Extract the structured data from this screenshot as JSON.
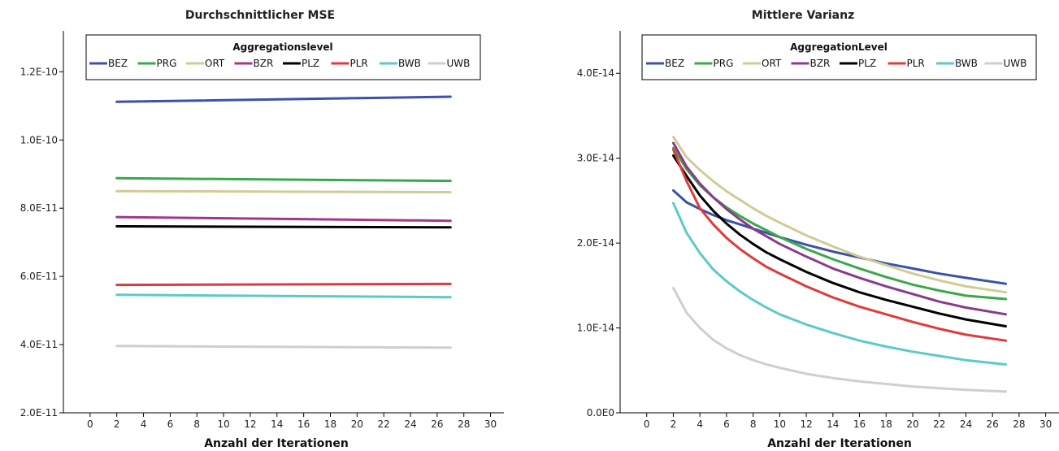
{
  "chart_data": [
    {
      "type": "line",
      "title": "Durchschnittlicher MSE",
      "xlabel": "Anzahl der Iterationen",
      "ylabel": "",
      "legend_title": "Aggregationslevel",
      "legend_position": "top-center",
      "xlim": [
        -2,
        31
      ],
      "ylim": [
        2e-11,
        1.32e-10
      ],
      "xticks": [
        "0",
        "2",
        "4",
        "6",
        "8",
        "10",
        "12",
        "14",
        "16",
        "18",
        "20",
        "22",
        "24",
        "26",
        "28",
        "30"
      ],
      "yticks": [
        "2.0E-11",
        "4.0E-11",
        "6.0E-11",
        "8.0E-11",
        "1.0E-10",
        "1.2E-10"
      ],
      "ytick_values": [
        2e-11,
        4e-11,
        6e-11,
        8e-11,
        1e-10,
        1.2e-10
      ],
      "grid": false,
      "x": [
        2,
        27
      ],
      "series": [
        {
          "name": "BEZ",
          "color": "#3a52a8",
          "values": [
            1.112e-10,
            1.127e-10
          ]
        },
        {
          "name": "PRG",
          "color": "#3aa84a",
          "values": [
            8.88e-11,
            8.8e-11
          ]
        },
        {
          "name": "ORT",
          "color": "#d0cc94",
          "values": [
            8.5e-11,
            8.47e-11
          ]
        },
        {
          "name": "BZR",
          "color": "#a0388e",
          "values": [
            7.74e-11,
            7.63e-11
          ]
        },
        {
          "name": "PLZ",
          "color": "#000000",
          "values": [
            7.47e-11,
            7.44e-11
          ]
        },
        {
          "name": "PLR",
          "color": "#e03a3a",
          "values": [
            5.75e-11,
            5.78e-11
          ]
        },
        {
          "name": "BWB",
          "color": "#5ccac6",
          "values": [
            5.46e-11,
            5.39e-11
          ]
        },
        {
          "name": "UWB",
          "color": "#cfcfcf",
          "values": [
            3.96e-11,
            3.91e-11
          ]
        }
      ]
    },
    {
      "type": "line",
      "title": "Mittlere Varianz",
      "xlabel": "Anzahl der Iterationen",
      "ylabel": "",
      "legend_title": "AggregationLevel",
      "legend_position": "top-center",
      "xlim": [
        -2,
        31
      ],
      "ylim": [
        0,
        4.5e-14
      ],
      "xticks": [
        "0",
        "2",
        "4",
        "6",
        "8",
        "10",
        "12",
        "14",
        "16",
        "18",
        "20",
        "22",
        "24",
        "26",
        "28",
        "30"
      ],
      "yticks": [
        "0.0E0",
        "1.0E-14",
        "2.0E-14",
        "3.0E-14",
        "4.0E-14"
      ],
      "ytick_values": [
        0,
        1e-14,
        2e-14,
        3e-14,
        4e-14
      ],
      "grid": false,
      "x": [
        2,
        3,
        4,
        5,
        6,
        7,
        8,
        9,
        10,
        12,
        14,
        16,
        18,
        20,
        22,
        24,
        27
      ],
      "series": [
        {
          "name": "BEZ",
          "color": "#3a52a8",
          "values": [
            2.62e-14,
            2.48e-14,
            2.4e-14,
            2.33e-14,
            2.27e-14,
            2.22e-14,
            2.17e-14,
            2.12e-14,
            2.07e-14,
            1.98e-14,
            1.9e-14,
            1.83e-14,
            1.76e-14,
            1.7e-14,
            1.64e-14,
            1.59e-14,
            1.52e-14
          ]
        },
        {
          "name": "PRG",
          "color": "#3aa84a",
          "values": [
            3.12e-14,
            2.87e-14,
            2.68e-14,
            2.54e-14,
            2.42e-14,
            2.32e-14,
            2.23e-14,
            2.15e-14,
            2.07e-14,
            1.93e-14,
            1.81e-14,
            1.7e-14,
            1.6e-14,
            1.51e-14,
            1.44e-14,
            1.38e-14,
            1.34e-14
          ]
        },
        {
          "name": "ORT",
          "color": "#d0cc94",
          "values": [
            3.25e-14,
            3.01e-14,
            2.86e-14,
            2.73e-14,
            2.61e-14,
            2.51e-14,
            2.41e-14,
            2.32e-14,
            2.24e-14,
            2.09e-14,
            1.96e-14,
            1.84e-14,
            1.74e-14,
            1.64e-14,
            1.56e-14,
            1.49e-14,
            1.42e-14
          ]
        },
        {
          "name": "BZR",
          "color": "#8b3a8e",
          "values": [
            3.18e-14,
            2.9e-14,
            2.7e-14,
            2.54e-14,
            2.4e-14,
            2.28e-14,
            2.17e-14,
            2.08e-14,
            1.99e-14,
            1.84e-14,
            1.7e-14,
            1.59e-14,
            1.49e-14,
            1.4e-14,
            1.31e-14,
            1.24e-14,
            1.16e-14
          ]
        },
        {
          "name": "PLZ",
          "color": "#000000",
          "values": [
            3.03e-14,
            2.79e-14,
            2.56e-14,
            2.38e-14,
            2.23e-14,
            2.1e-14,
            1.99e-14,
            1.89e-14,
            1.81e-14,
            1.66e-14,
            1.53e-14,
            1.42e-14,
            1.33e-14,
            1.25e-14,
            1.17e-14,
            1.1e-14,
            1.02e-14
          ]
        },
        {
          "name": "PLR",
          "color": "#e03a3a",
          "values": [
            3.1e-14,
            2.73e-14,
            2.41e-14,
            2.22e-14,
            2.06e-14,
            1.93e-14,
            1.82e-14,
            1.72e-14,
            1.64e-14,
            1.49e-14,
            1.36e-14,
            1.25e-14,
            1.16e-14,
            1.07e-14,
            9.9e-15,
            9.2e-15,
            8.5e-15
          ]
        },
        {
          "name": "BWB",
          "color": "#5ccac6",
          "values": [
            2.47e-14,
            2.12e-14,
            1.88e-14,
            1.69e-14,
            1.55e-14,
            1.43e-14,
            1.33e-14,
            1.24e-14,
            1.16e-14,
            1.04e-14,
            9.4e-15,
            8.5e-15,
            7.8e-15,
            7.2e-15,
            6.7e-15,
            6.2e-15,
            5.7e-15
          ]
        },
        {
          "name": "UWB",
          "color": "#cfcfcf",
          "values": [
            1.47e-14,
            1.18e-14,
            1e-14,
            8.6e-15,
            7.6e-15,
            6.8e-15,
            6.2e-15,
            5.7e-15,
            5.3e-15,
            4.6e-15,
            4.1e-15,
            3.7e-15,
            3.4e-15,
            3.1e-15,
            2.9e-15,
            2.7e-15,
            2.5e-15
          ]
        }
      ]
    }
  ]
}
